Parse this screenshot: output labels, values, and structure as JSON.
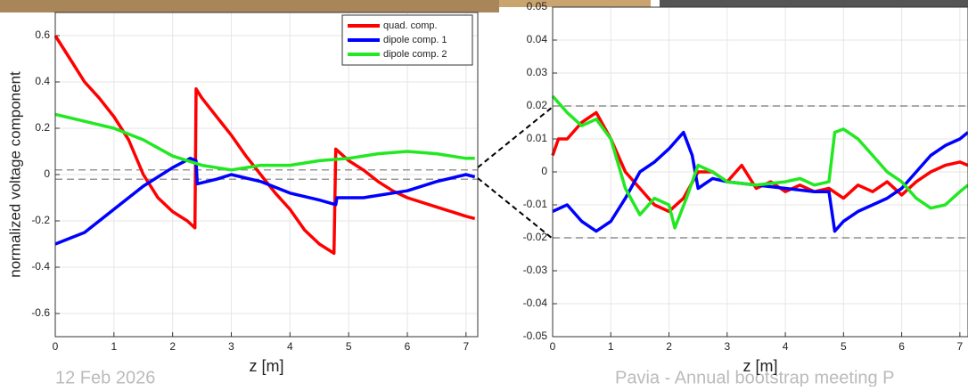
{
  "chart_data": [
    {
      "type": "line",
      "ylabel": "normalized voltage component",
      "xlabel": "z [m]",
      "xlim": [
        0,
        7.2
      ],
      "ylim": [
        -0.7,
        0.7
      ],
      "xticks": [
        0,
        1,
        2,
        3,
        4,
        5,
        6,
        7
      ],
      "yticks": [
        -0.6,
        -0.4,
        -0.2,
        0,
        0.2,
        0.4,
        0.6
      ],
      "grid": true,
      "legend": "upper right",
      "reference_lines": [
        0.02,
        -0.02
      ],
      "series": [
        {
          "name": "quad. comp.",
          "color": "#ff0000",
          "x": [
            0,
            0.25,
            0.5,
            0.75,
            1,
            1.25,
            1.5,
            1.75,
            2,
            2.25,
            2.38,
            2.4,
            2.5,
            2.75,
            3,
            3.25,
            3.5,
            3.75,
            4,
            4.25,
            4.5,
            4.75,
            4.78,
            5,
            5.25,
            5.5,
            5.75,
            6,
            6.5,
            7,
            7.15
          ],
          "values": [
            0.6,
            0.5,
            0.4,
            0.33,
            0.25,
            0.15,
            0.0,
            -0.1,
            -0.16,
            -0.2,
            -0.23,
            0.37,
            0.33,
            0.25,
            0.17,
            0.08,
            0.0,
            -0.08,
            -0.15,
            -0.24,
            -0.3,
            -0.34,
            0.11,
            0.06,
            0.02,
            -0.03,
            -0.07,
            -0.1,
            -0.14,
            -0.18,
            -0.19
          ]
        },
        {
          "name": "dipole comp. 1",
          "color": "#0000ff",
          "x": [
            0,
            0.5,
            1,
            1.5,
            2,
            2.3,
            2.4,
            2.42,
            2.75,
            3,
            3.5,
            4,
            4.5,
            4.78,
            4.8,
            5.25,
            6,
            6.5,
            7,
            7.15
          ],
          "values": [
            -0.3,
            -0.25,
            -0.15,
            -0.05,
            0.03,
            0.07,
            0.06,
            -0.04,
            -0.02,
            0.0,
            -0.03,
            -0.08,
            -0.11,
            -0.13,
            -0.1,
            -0.1,
            -0.07,
            -0.03,
            0.0,
            -0.01
          ]
        },
        {
          "name": "dipole comp. 2",
          "color": "#22e822",
          "x": [
            0,
            0.5,
            1,
            1.5,
            2,
            2.5,
            3,
            3.5,
            4,
            4.5,
            5,
            5.5,
            6,
            6.5,
            7,
            7.15
          ],
          "values": [
            0.26,
            0.23,
            0.2,
            0.15,
            0.08,
            0.04,
            0.02,
            0.04,
            0.04,
            0.06,
            0.07,
            0.09,
            0.1,
            0.09,
            0.07,
            0.07
          ]
        }
      ]
    },
    {
      "type": "line",
      "xlabel": "z [m]",
      "xlim": [
        0,
        7.14
      ],
      "ylim": [
        -0.05,
        0.05
      ],
      "xticks": [
        0,
        1,
        2,
        3,
        4,
        5,
        6,
        7
      ],
      "yticks": [
        -0.05,
        -0.04,
        -0.03,
        -0.02,
        -0.01,
        0,
        0.01,
        0.02,
        0.03,
        0.04,
        0.05
      ],
      "grid": true,
      "reference_lines": [
        0.02,
        -0.02
      ],
      "series": [
        {
          "color": "#ff0000",
          "x": [
            0,
            0.1,
            0.25,
            0.5,
            0.75,
            1,
            1.25,
            1.5,
            1.75,
            2,
            2.25,
            2.5,
            2.75,
            3,
            3.25,
            3.5,
            3.75,
            4,
            4.25,
            4.5,
            4.75,
            5,
            5.25,
            5.5,
            5.75,
            6,
            6.25,
            6.5,
            6.75,
            7,
            7.14
          ],
          "values": [
            0.005,
            0.01,
            0.01,
            0.015,
            0.018,
            0.01,
            0.0,
            -0.005,
            -0.01,
            -0.012,
            -0.008,
            0.0,
            0.0,
            -0.003,
            0.002,
            -0.005,
            -0.003,
            -0.006,
            -0.004,
            -0.006,
            -0.005,
            -0.008,
            -0.004,
            -0.006,
            -0.003,
            -0.007,
            -0.003,
            0.0,
            0.002,
            0.003,
            0.002
          ]
        },
        {
          "color": "#0000ff",
          "x": [
            0,
            0.25,
            0.5,
            0.75,
            1,
            1.25,
            1.5,
            1.75,
            2,
            2.25,
            2.4,
            2.5,
            2.75,
            3,
            3.5,
            4,
            4.5,
            4.75,
            4.85,
            5,
            5.25,
            5.5,
            5.75,
            6,
            6.25,
            6.5,
            6.75,
            7,
            7.14
          ],
          "values": [
            -0.012,
            -0.01,
            -0.015,
            -0.018,
            -0.015,
            -0.008,
            0.0,
            0.003,
            0.007,
            0.012,
            0.005,
            -0.005,
            -0.002,
            -0.003,
            -0.004,
            -0.005,
            -0.006,
            -0.006,
            -0.018,
            -0.015,
            -0.012,
            -0.01,
            -0.008,
            -0.005,
            0.0,
            0.005,
            0.008,
            0.01,
            0.012
          ]
        },
        {
          "color": "#22e822",
          "x": [
            0,
            0.25,
            0.5,
            0.75,
            1,
            1.25,
            1.5,
            1.75,
            2,
            2.1,
            2.3,
            2.5,
            2.75,
            3,
            3.5,
            4,
            4.25,
            4.5,
            4.75,
            4.85,
            5,
            5.25,
            5.5,
            5.75,
            6,
            6.25,
            6.5,
            6.75,
            7,
            7.14
          ],
          "values": [
            0.023,
            0.018,
            0.014,
            0.016,
            0.01,
            -0.005,
            -0.013,
            -0.008,
            -0.01,
            -0.017,
            -0.008,
            0.002,
            0.0,
            -0.003,
            -0.004,
            -0.003,
            -0.002,
            -0.004,
            -0.003,
            0.012,
            0.013,
            0.01,
            0.005,
            0.0,
            -0.003,
            -0.008,
            -0.011,
            -0.01,
            -0.006,
            -0.004
          ]
        }
      ]
    }
  ],
  "footer": {
    "date": "12 Feb 2026",
    "text": "Pavia - Annual bootstrap meeting P"
  }
}
